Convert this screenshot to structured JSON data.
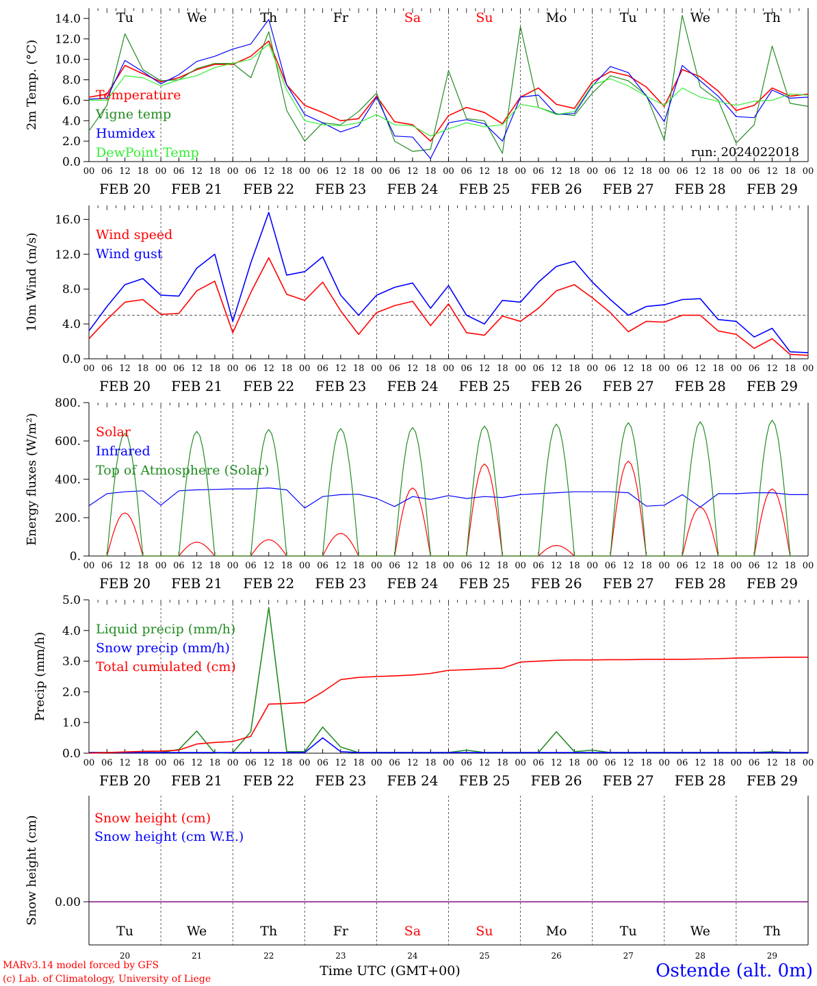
{
  "run_label": "run: 2024022018",
  "footer": {
    "credit_line1": "MARv3.14 model forced by GFS",
    "credit_line2": "(c) Lab. of Climatology, University of Liege",
    "xlabel": "Time UTC (GMT+00)",
    "station": "Ostende (alt. 0m)"
  },
  "colors": {
    "red": "#ff0000",
    "green": "#228b22",
    "blue": "#0000ff",
    "lightgreen": "#33ee33",
    "purple": "#800080",
    "frame": "#000000",
    "weekend": "#ff0000"
  },
  "x_axis": {
    "start": "2024-02-20T00:00Z",
    "end": "2024-03-01T00:00Z",
    "hour_tick_labels": [
      "00",
      "06",
      "12",
      "18"
    ],
    "date_labels": [
      "FEB 20",
      "FEB 21",
      "FEB 22",
      "FEB 23",
      "FEB 24",
      "FEB 25",
      "FEB 26",
      "FEB 27",
      "FEB 28",
      "FEB 29"
    ],
    "weekday_labels": [
      "Tu",
      "We",
      "Th",
      "Fr",
      "Sa",
      "Su",
      "Mo",
      "Tu",
      "We",
      "Th"
    ],
    "weekend_days": [
      4,
      5
    ],
    "bottom_day_numbers": [
      "20",
      "21",
      "22",
      "23",
      "24",
      "25",
      "26",
      "27",
      "28",
      "29"
    ]
  },
  "chart_data": [
    {
      "type": "line",
      "ylabel": "2m Temp. (°C)",
      "ylim": [
        0,
        15
      ],
      "yticks": [
        "0.0",
        "2.0",
        "4.0",
        "6.0",
        "8.0",
        "10.0",
        "12.0",
        "14.0"
      ],
      "x_hours": [
        0,
        6,
        12,
        18,
        24,
        30,
        36,
        42,
        48,
        54,
        60,
        66,
        72,
        78,
        84,
        90,
        96,
        102,
        108,
        114,
        120,
        126,
        132,
        138,
        144,
        150,
        156,
        162,
        168,
        174,
        180,
        186,
        192,
        198,
        204,
        210,
        216,
        222,
        228,
        234,
        240
      ],
      "series": [
        {
          "name": "Temperature",
          "color": "red",
          "values": [
            6.3,
            6.6,
            9.4,
            8.6,
            7.8,
            8.2,
            9.0,
            9.5,
            9.5,
            10.3,
            11.8,
            7.5,
            5.5,
            4.8,
            4.0,
            4.2,
            6.4,
            3.9,
            3.6,
            2.0,
            4.5,
            5.3,
            4.8,
            3.7,
            6.3,
            7.2,
            5.6,
            5.2,
            7.8,
            8.8,
            8.4,
            7.3,
            5.4,
            9.0,
            8.3,
            6.9,
            5.0,
            5.5,
            7.2,
            6.4,
            6.6
          ]
        },
        {
          "name": "Vigne temp",
          "color": "green",
          "values": [
            3.0,
            5.5,
            12.5,
            9.0,
            7.9,
            8.0,
            9.1,
            9.6,
            9.6,
            8.2,
            12.7,
            5.0,
            2.0,
            3.8,
            3.6,
            4.9,
            6.7,
            2.0,
            1.0,
            1.2,
            8.9,
            4.2,
            4.0,
            0.8,
            13.2,
            5.3,
            4.7,
            4.5,
            6.7,
            8.4,
            7.9,
            6.5,
            2.1,
            14.3,
            7.3,
            6.0,
            1.8,
            3.6,
            11.3,
            5.7,
            5.4
          ]
        },
        {
          "name": "Humidex",
          "color": "blue",
          "values": [
            6.1,
            6.2,
            9.9,
            8.8,
            7.6,
            8.5,
            9.8,
            10.3,
            11.0,
            11.5,
            13.9,
            7.5,
            4.6,
            3.8,
            2.9,
            3.5,
            6.3,
            2.5,
            2.4,
            0.3,
            3.8,
            4.1,
            3.7,
            2.0,
            6.3,
            6.5,
            4.6,
            4.7,
            7.4,
            9.3,
            8.7,
            6.4,
            3.9,
            9.4,
            7.9,
            6.4,
            4.4,
            4.3,
            7.0,
            6.2,
            6.3
          ]
        },
        {
          "name": "DewPoint Temp",
          "color": "lightgreen",
          "values": [
            6.0,
            6.0,
            8.4,
            8.2,
            7.4,
            8.0,
            8.4,
            9.2,
            9.6,
            10.0,
            11.5,
            7.0,
            4.0,
            3.6,
            3.5,
            3.8,
            4.6,
            3.6,
            3.5,
            2.5,
            3.2,
            3.8,
            3.4,
            3.6,
            5.6,
            5.3,
            4.6,
            4.9,
            7.5,
            8.1,
            7.4,
            6.4,
            5.5,
            7.2,
            6.3,
            5.9,
            5.5,
            5.9,
            6.0,
            6.6,
            6.5
          ]
        }
      ]
    },
    {
      "type": "line",
      "ylabel": "10m Wind (m/s)",
      "ylim": [
        0,
        17.6
      ],
      "yticks": [
        "0.0",
        "4.0",
        "8.0",
        "12.0",
        "16.0"
      ],
      "reference_line": 5.0,
      "x_hours": [
        0,
        6,
        12,
        18,
        24,
        30,
        36,
        42,
        48,
        54,
        60,
        66,
        72,
        78,
        84,
        90,
        96,
        102,
        108,
        114,
        120,
        126,
        132,
        138,
        144,
        150,
        156,
        162,
        168,
        174,
        180,
        186,
        192,
        198,
        204,
        210,
        216,
        222,
        228,
        234,
        240
      ],
      "series": [
        {
          "name": "Wind speed",
          "color": "red",
          "values": [
            2.3,
            4.5,
            6.5,
            6.8,
            5.1,
            5.2,
            7.8,
            8.9,
            3.0,
            7.6,
            11.6,
            7.4,
            6.7,
            8.8,
            5.5,
            2.8,
            5.3,
            6.1,
            6.6,
            3.8,
            6.3,
            3.0,
            2.7,
            4.9,
            4.3,
            5.8,
            7.8,
            8.5,
            7.0,
            5.3,
            3.1,
            4.3,
            4.2,
            5.0,
            5.0,
            3.2,
            2.8,
            1.2,
            2.3,
            0.5,
            0.4
          ]
        },
        {
          "name": "Wind gust",
          "color": "blue",
          "values": [
            3.2,
            6.0,
            8.5,
            9.2,
            7.3,
            7.2,
            10.4,
            12.0,
            4.3,
            11.0,
            16.8,
            9.6,
            10.0,
            11.7,
            7.3,
            5.0,
            7.3,
            8.2,
            8.7,
            5.8,
            8.4,
            5.0,
            4.0,
            6.7,
            6.5,
            8.8,
            10.6,
            11.2,
            8.8,
            6.8,
            5.0,
            6.0,
            6.2,
            6.8,
            6.9,
            4.5,
            4.3,
            2.5,
            3.5,
            0.8,
            0.7
          ]
        }
      ]
    },
    {
      "type": "line",
      "ylabel": "Energy fluxes (W/m²)",
      "ylim": [
        0,
        800
      ],
      "yticks": [
        "0.",
        "200.",
        "400.",
        "600.",
        "800."
      ],
      "series": [
        {
          "name": "Solar",
          "color": "red",
          "daily_peak_values": [
            225,
            72,
            85,
            118,
            355,
            480,
            55,
            495,
            255,
            350
          ]
        },
        {
          "name": "Infrared",
          "color": "blue",
          "x_hours": [
            0,
            6,
            12,
            18,
            24,
            30,
            36,
            42,
            48,
            54,
            60,
            66,
            72,
            78,
            84,
            90,
            96,
            102,
            108,
            114,
            120,
            126,
            132,
            138,
            144,
            150,
            156,
            162,
            168,
            174,
            180,
            186,
            192,
            198,
            204,
            210,
            216,
            222,
            228,
            234,
            240
          ],
          "values": [
            262,
            325,
            335,
            340,
            265,
            340,
            345,
            347,
            350,
            350,
            355,
            345,
            250,
            310,
            320,
            322,
            300,
            258,
            310,
            295,
            315,
            300,
            310,
            305,
            320,
            325,
            330,
            335,
            335,
            335,
            330,
            260,
            265,
            320,
            255,
            325,
            325,
            330,
            330,
            320,
            320
          ]
        },
        {
          "name": "Top of Atmosphere (Solar)",
          "color": "green",
          "daily_peak_values": [
            640,
            650,
            660,
            665,
            670,
            678,
            688,
            695,
            700,
            708
          ]
        }
      ]
    },
    {
      "type": "line",
      "ylabel": "Precip (mm/h)",
      "ylim": [
        0,
        5
      ],
      "yticks": [
        "0.0",
        "1.0",
        "2.0",
        "3.0",
        "4.0",
        "5.0"
      ],
      "x_hours": [
        0,
        6,
        12,
        18,
        24,
        30,
        36,
        42,
        48,
        54,
        60,
        66,
        72,
        78,
        84,
        90,
        96,
        102,
        108,
        114,
        120,
        126,
        132,
        138,
        144,
        150,
        156,
        162,
        168,
        174,
        180,
        186,
        192,
        198,
        204,
        210,
        216,
        222,
        228,
        234,
        240
      ],
      "series": [
        {
          "name": "Liquid precip (mm/h)",
          "color": "green",
          "values": [
            0.02,
            0.02,
            0.02,
            0.02,
            0.02,
            0.12,
            0.72,
            0.0,
            0.02,
            0.7,
            4.75,
            0.05,
            0.05,
            0.85,
            0.2,
            0.02,
            0.02,
            0.02,
            0.02,
            0.02,
            0.02,
            0.1,
            0.02,
            0.02,
            0.02,
            0.02,
            0.7,
            0.05,
            0.1,
            0.02,
            0.02,
            0.02,
            0.02,
            0.02,
            0.02,
            0.02,
            0.02,
            0.02,
            0.05,
            0.02,
            0.02
          ]
        },
        {
          "name": "Snow precip (mm/h)",
          "color": "blue",
          "values": [
            0.02,
            0.02,
            0.02,
            0.02,
            0.02,
            0.02,
            0.02,
            0.02,
            0.02,
            0.02,
            0.02,
            0.02,
            0.02,
            0.5,
            0.05,
            0.02,
            0.02,
            0.02,
            0.02,
            0.02,
            0.02,
            0.02,
            0.02,
            0.02,
            0.02,
            0.02,
            0.02,
            0.02,
            0.02,
            0.02,
            0.02,
            0.02,
            0.02,
            0.02,
            0.02,
            0.02,
            0.02,
            0.02,
            0.02,
            0.02,
            0.02
          ]
        },
        {
          "name": "Total cumulated (cm)",
          "color": "red",
          "values": [
            0.0,
            0.02,
            0.04,
            0.06,
            0.07,
            0.1,
            0.3,
            0.35,
            0.38,
            0.55,
            1.6,
            1.62,
            1.65,
            2.0,
            2.4,
            2.47,
            2.5,
            2.52,
            2.55,
            2.6,
            2.7,
            2.72,
            2.75,
            2.77,
            2.97,
            3.0,
            3.03,
            3.04,
            3.04,
            3.05,
            3.05,
            3.06,
            3.06,
            3.06,
            3.07,
            3.08,
            3.1,
            3.11,
            3.12,
            3.13,
            3.13
          ]
        }
      ]
    },
    {
      "type": "line",
      "ylabel": "Snow height (cm)",
      "yticks": [
        "0.00"
      ],
      "series": [
        {
          "name": "Snow height (cm)",
          "color": "red",
          "values": [
            0.0,
            0.0
          ]
        },
        {
          "name": "Snow height (cm W.E.)",
          "color": "blue",
          "values": [
            0.0,
            0.0
          ]
        }
      ]
    }
  ]
}
